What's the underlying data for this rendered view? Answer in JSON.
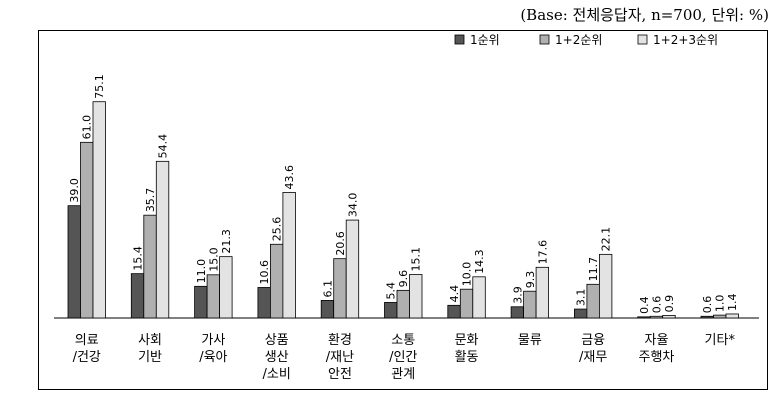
{
  "caption": "(Base: 전체응답자, n=700, 단위: %)",
  "chart_data": {
    "type": "bar",
    "categories": [
      [
        "의료",
        "/건강"
      ],
      [
        "사회",
        "기반"
      ],
      [
        "가사",
        "/육아"
      ],
      [
        "상품",
        "생산",
        "/소비"
      ],
      [
        "환경",
        "/재난",
        "안전"
      ],
      [
        "소통",
        "/인간",
        "관계"
      ],
      [
        "문화",
        "활동"
      ],
      [
        "물류"
      ],
      [
        "금융",
        "/재무"
      ],
      [
        "자율",
        "주행차"
      ],
      [
        "기타*"
      ]
    ],
    "series": [
      {
        "name": "1순위",
        "color": "#555555",
        "values": [
          39.0,
          15.4,
          11.0,
          10.6,
          6.1,
          5.4,
          4.4,
          3.9,
          3.1,
          0.4,
          0.6
        ]
      },
      {
        "name": "1+2순위",
        "color": "#b0b0b0",
        "values": [
          61.0,
          35.7,
          15.0,
          25.6,
          20.6,
          9.6,
          10.0,
          9.3,
          11.7,
          0.6,
          1.0
        ]
      },
      {
        "name": "1+2+3순위",
        "color": "#e3e3e3",
        "values": [
          75.1,
          54.4,
          21.3,
          43.6,
          34.0,
          15.1,
          14.3,
          17.6,
          22.1,
          0.9,
          1.4
        ]
      }
    ],
    "value_format": "one-decimal",
    "ylim": [
      0,
      80
    ],
    "grid": false,
    "legend_position": "top-right"
  }
}
